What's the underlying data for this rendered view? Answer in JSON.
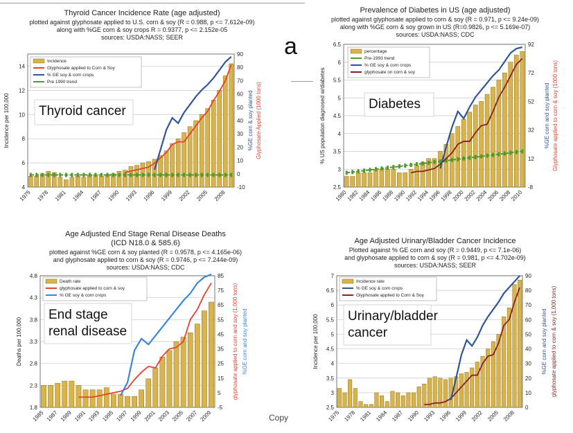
{
  "letter": "a",
  "copy_text": "Copy",
  "charts": [
    {
      "title": "Thyroid Cancer Incidence Rate (age adjusted)",
      "subtitle": [
        "plotted against glyphosate applied to U.S. corn & soy (R = 0.988, p <= 7.612e-09)",
        "along with %GE corn & soy crops R = 0.9377, p <= 2.152e-05",
        "sources: USDA:NASS; SEER"
      ],
      "big_label": [
        "Thyroid cancer"
      ]
    },
    {
      "title": "Prevalence of Diabetes in US (age adjusted)",
      "subtitle": [
        "plotted against glyphosate applied to corn & soy (R = 0.971, p <= 9.24e-09)",
        "along with %GE corn & soy grown in US (R=0.9826, p <= 5.169e-07)",
        "sources: USDA:NASS; CDC"
      ],
      "big_label": [
        "Diabetes"
      ]
    },
    {
      "title": "Age Adjusted End Stage Renal Disease Deaths",
      "subtitle": [
        "(ICD N18.0 & 585.6)",
        "plotted against %GE corn & soy planted (R = 0.9578, p <= 4.165e-06)",
        "and glyphosate applied to corn & soy (R = 0.9746, p <= 7.244e-09)",
        "sources: USDA:NASS; CDC"
      ],
      "big_label": [
        "End stage",
        "renal disease"
      ]
    },
    {
      "title": "Age Adjusted Urinary/Bladder Cancer Incidence",
      "subtitle": [
        "Plotted against % GE corn and soy (R = 0.9449, p <= 7.1e-06)",
        "and glyphosate applied to corn & soy (R = 0.981, p <= 4.702e-09)",
        "sources: USDA:NASS; SEER"
      ],
      "big_label": [
        "Urinary/bladder",
        "cancer"
      ]
    }
  ],
  "chart_data": [
    {
      "type": "bar",
      "years": [
        1975,
        1976,
        1977,
        1978,
        1979,
        1980,
        1981,
        1982,
        1983,
        1984,
        1985,
        1986,
        1987,
        1988,
        1989,
        1990,
        1991,
        1992,
        1993,
        1994,
        1995,
        1996,
        1997,
        1998,
        1999,
        2000,
        2001,
        2002,
        2003,
        2004,
        2005,
        2006,
        2007,
        2008,
        2009
      ],
      "x_ticks": [
        "1975",
        "1978",
        "1981",
        "1984",
        "1987",
        "1990",
        "1993",
        "1996",
        "1999",
        "2002",
        "2005",
        "2008"
      ],
      "y_left": {
        "range": [
          4,
          15
        ],
        "ticks": [
          4,
          6,
          8,
          10,
          12,
          14
        ],
        "label": "Incidence per 100,000"
      },
      "y_right": {
        "range": [
          -10,
          90
        ],
        "ticks": [
          -10,
          0,
          10,
          20,
          30,
          40,
          50,
          60,
          70,
          80,
          90
        ],
        "label": "%GE corn & soy planted",
        "label2": "Glyphosate Applied (1000 tons)"
      },
      "bars": {
        "name": "Incidence",
        "values": [
          4.9,
          4.9,
          5.1,
          5.3,
          5.2,
          4.8,
          4.6,
          4.8,
          4.9,
          4.8,
          5.0,
          5.0,
          4.9,
          5.0,
          5.1,
          5.3,
          5.4,
          5.7,
          5.8,
          6.0,
          6.1,
          6.3,
          6.6,
          7.0,
          7.6,
          8.0,
          8.5,
          9.0,
          9.5,
          10.0,
          10.5,
          11.2,
          12.0,
          13.2,
          14.2
        ]
      },
      "glyphosate": {
        "name": "Glyphosate applied to Corn & Soy",
        "years": [
          1991,
          1992,
          1993,
          1994,
          1995,
          1996,
          1997,
          1998,
          1999,
          2000,
          2001,
          2002,
          2003,
          2004,
          2005,
          2006,
          2007,
          2008,
          2009
        ],
        "values": [
          1,
          2,
          3,
          4,
          5,
          8,
          12,
          16,
          22,
          24,
          24,
          30,
          36,
          42,
          47,
          55,
          62,
          70,
          82
        ]
      },
      "ge": {
        "name": "% GE soy & corn crops",
        "years": [
          1996,
          1997,
          1998,
          1999,
          2000,
          2001,
          2002,
          2003,
          2004,
          2005,
          2006,
          2007,
          2008,
          2009
        ],
        "values": [
          3,
          18,
          33,
          42,
          38,
          46,
          52,
          58,
          63,
          67,
          72,
          78,
          84,
          88
        ]
      },
      "trend": {
        "name": "Pre 1990 trend",
        "values": [
          5.0,
          5.0,
          5.0,
          5.0,
          5.0,
          5.0,
          5.0,
          5.0,
          5.0,
          5.0,
          5.0,
          5.0,
          5.0,
          5.0,
          5.0,
          5.0,
          5.0,
          5.0,
          5.0,
          5.0,
          5.0,
          5.0,
          5.0,
          5.0,
          5.0,
          5.0,
          5.0,
          5.0,
          5.0,
          5.0,
          5.0,
          5.0,
          5.0,
          5.0,
          5.0
        ]
      }
    },
    {
      "type": "bar",
      "years": [
        1980,
        1981,
        1982,
        1983,
        1984,
        1985,
        1986,
        1987,
        1988,
        1989,
        1990,
        1991,
        1992,
        1993,
        1994,
        1995,
        1996,
        1997,
        1998,
        1999,
        2000,
        2001,
        2002,
        2003,
        2004,
        2005,
        2006,
        2007,
        2008,
        2009,
        2010
      ],
      "x_ticks": [
        "1980",
        "1982",
        "1984",
        "1986",
        "1988",
        "1990",
        "1992",
        "1994",
        "1996",
        "1998",
        "2000",
        "2002",
        "2004",
        "2006",
        "2008",
        "2010"
      ],
      "y_left": {
        "range": [
          2.5,
          6.5
        ],
        "ticks": [
          2.5,
          3,
          3.5,
          4,
          4.5,
          5,
          5.5,
          6,
          6.5
        ],
        "label": "% US population diagnosed w/diabetes"
      },
      "y_right": {
        "range": [
          -8,
          92
        ],
        "ticks": [
          -8,
          12,
          32,
          52,
          72,
          92
        ],
        "label": "%GE corn and soy planted",
        "label2": "Glyphosate applied to corn & soy (1000 tons)"
      },
      "bars": {
        "name": "percentage",
        "values": [
          2.8,
          2.8,
          2.9,
          2.9,
          2.9,
          3.0,
          3.0,
          3.0,
          3.0,
          2.9,
          2.9,
          3.0,
          3.1,
          3.2,
          3.3,
          3.3,
          3.5,
          3.7,
          4.0,
          4.2,
          4.4,
          4.6,
          4.8,
          4.9,
          5.1,
          5.3,
          5.5,
          5.7,
          6.0,
          6.2,
          6.3
        ]
      },
      "trend": {
        "name": "Pre-1993 trend",
        "values": [
          2.9,
          2.92,
          2.94,
          2.96,
          2.98,
          3.0,
          3.02,
          3.04,
          3.06,
          3.08,
          3.1,
          3.12,
          3.14,
          3.16,
          3.18,
          3.2,
          3.22,
          3.24,
          3.26,
          3.28,
          3.3,
          3.32,
          3.34,
          3.36,
          3.38,
          3.4,
          3.42,
          3.44,
          3.46,
          3.48,
          3.5
        ]
      },
      "ge": {
        "name": "% GE soy & corn crops",
        "years": [
          1996,
          1997,
          1998,
          1999,
          2000,
          2001,
          2002,
          2003,
          2004,
          2005,
          2006,
          2007,
          2008,
          2009,
          2010
        ],
        "values": [
          5,
          20,
          34,
          45,
          40,
          48,
          55,
          60,
          65,
          70,
          74,
          80,
          86,
          89,
          90
        ]
      },
      "glyphosate": {
        "name": "glyphosate on corn & soy",
        "years": [
          1991,
          1992,
          1993,
          1994,
          1995,
          1996,
          1997,
          1998,
          1999,
          2000,
          2001,
          2002,
          2003,
          2004,
          2005,
          2006,
          2007,
          2008,
          2009,
          2010
        ],
        "values": [
          2,
          3,
          3,
          4,
          5,
          8,
          12,
          16,
          22,
          24,
          24,
          30,
          35,
          36,
          45,
          55,
          62,
          70,
          78,
          82
        ]
      }
    },
    {
      "type": "bar",
      "years": [
        1985,
        1986,
        1987,
        1988,
        1989,
        1990,
        1991,
        1992,
        1993,
        1994,
        1995,
        1996,
        1997,
        1998,
        1999,
        2000,
        2001,
        2002,
        2003,
        2004,
        2005,
        2006,
        2007,
        2008,
        2009
      ],
      "x_ticks": [
        "1985",
        "1987",
        "1989",
        "1991",
        "1993",
        "1995",
        "1997",
        "1999",
        "2001",
        "2003",
        "2005",
        "2007",
        "2009"
      ],
      "y_left": {
        "range": [
          1.8,
          4.8
        ],
        "ticks": [
          1.8,
          2.3,
          2.8,
          3.3,
          3.8,
          4.3,
          4.8
        ],
        "label": "Deaths per 100,000"
      },
      "y_right": {
        "range": [
          -5,
          85
        ],
        "ticks": [
          -5,
          5,
          15,
          25,
          35,
          45,
          55,
          65,
          75,
          85
        ],
        "label": "glyphosate applied to corn and soy (1,000 tons)",
        "label2": "%GE corn and soy planted"
      },
      "bars": {
        "name": "Death rate",
        "values": [
          2.3,
          2.3,
          2.35,
          2.4,
          2.4,
          2.3,
          2.2,
          2.2,
          2.2,
          2.25,
          2.1,
          2.1,
          2.05,
          2.05,
          2.2,
          2.45,
          2.7,
          2.95,
          3.1,
          3.3,
          3.4,
          3.5,
          3.7,
          4.0,
          4.2
        ]
      },
      "glyphosate": {
        "name": "glyphosate applied to corn & soy",
        "years": [
          1990,
          1991,
          1992,
          1993,
          1994,
          1995,
          1996,
          1997,
          1998,
          1999,
          2000,
          2001,
          2002,
          2003,
          2004,
          2005,
          2006,
          2007,
          2008,
          2009
        ],
        "values": [
          2,
          2,
          2,
          3,
          4,
          5,
          6,
          8,
          14,
          19,
          23,
          22,
          30,
          35,
          36,
          40,
          55,
          62,
          72,
          80
        ]
      },
      "ge": {
        "name": "% GE soy & corn crops",
        "years": [
          1996,
          1997,
          1998,
          1999,
          2000,
          2001,
          2002,
          2003,
          2004,
          2005,
          2006,
          2007,
          2008,
          2009
        ],
        "values": [
          3,
          12,
          34,
          42,
          38,
          44,
          50,
          56,
          62,
          68,
          73,
          80,
          84,
          86
        ]
      }
    },
    {
      "type": "bar",
      "years": [
        1975,
        1976,
        1977,
        1978,
        1979,
        1980,
        1981,
        1982,
        1983,
        1984,
        1985,
        1986,
        1987,
        1988,
        1989,
        1990,
        1991,
        1992,
        1993,
        1994,
        1995,
        1996,
        1997,
        1998,
        1999,
        2000,
        2001,
        2002,
        2003,
        2004,
        2005,
        2006,
        2007,
        2008,
        2009
      ],
      "x_ticks": [
        "1975",
        "1978",
        "1981",
        "1984",
        "1987",
        "1990",
        "1993",
        "1996",
        "1999",
        "2002",
        "2005",
        "2008"
      ],
      "y_left": {
        "range": [
          2.5,
          7
        ],
        "ticks": [
          2.5,
          3,
          3.5,
          4,
          4.5,
          5,
          5.5,
          6,
          6.5,
          7
        ],
        "label": "Incidence per 100,000"
      },
      "y_right": {
        "range": [
          0,
          90
        ],
        "ticks": [
          0,
          10,
          20,
          30,
          40,
          50,
          60,
          70,
          80,
          90
        ],
        "label": "%GE corn and soy planted",
        "label2": "glyphosate applied to corn & soy (1,000 tons)"
      },
      "bars": {
        "name": "Incidence rate",
        "values": [
          3.15,
          3.0,
          3.45,
          3.15,
          2.7,
          2.6,
          2.6,
          3.0,
          2.9,
          2.7,
          3.05,
          3.0,
          2.9,
          3.0,
          3.0,
          3.2,
          3.3,
          3.5,
          3.55,
          3.5,
          3.45,
          3.5,
          3.55,
          3.65,
          3.7,
          3.85,
          4.05,
          4.25,
          4.5,
          4.75,
          5.0,
          5.6,
          5.9,
          6.7,
          6.85
        ]
      },
      "ge": {
        "name": "% GE soy & corn crops",
        "years": [
          1996,
          1997,
          1998,
          1999,
          2000,
          2001,
          2002,
          2003,
          2004,
          2005,
          2006,
          2007,
          2008,
          2009
        ],
        "values": [
          5,
          20,
          36,
          46,
          42,
          48,
          56,
          62,
          67,
          72,
          78,
          82,
          86,
          90
        ]
      },
      "glyphosate": {
        "name": "Glyphosate applied to Corn & Soy",
        "years": [
          1991,
          1992,
          1993,
          1994,
          1995,
          1996,
          1997,
          1998,
          1999,
          2000,
          2001,
          2002,
          2003,
          2004,
          2005,
          2006,
          2007,
          2008,
          2009
        ],
        "values": [
          2,
          2,
          3,
          3,
          4,
          6,
          10,
          14,
          18,
          22,
          22,
          30,
          35,
          36,
          44,
          56,
          60,
          72,
          82
        ]
      }
    }
  ],
  "colors": {
    "bar_fill": "#d8b44a",
    "bar_stroke": "#8a6d1a",
    "glyphosate": "#e8402c",
    "ge_blue": "#2f5597",
    "ge_light": "#3a86d8",
    "trend": "#4f9a2a",
    "dark_red": "#8a1f1f"
  }
}
